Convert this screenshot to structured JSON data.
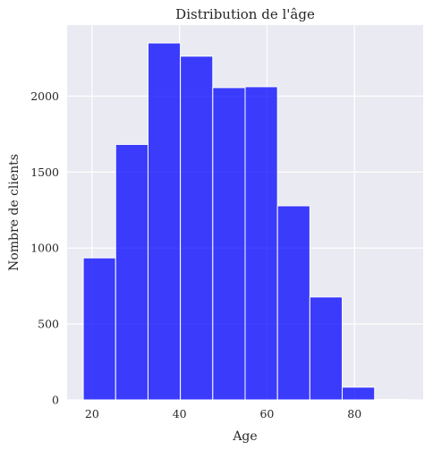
{
  "chart_data": {
    "type": "bar",
    "title": "Distribution de l'âge",
    "xlabel": "Age",
    "ylabel": "Nombre de clients",
    "bins": [
      {
        "start": 18.0,
        "end": 25.4,
        "value": 935
      },
      {
        "start": 25.4,
        "end": 32.8,
        "value": 1682
      },
      {
        "start": 32.8,
        "end": 40.2,
        "value": 2350
      },
      {
        "start": 40.2,
        "end": 47.6,
        "value": 2263
      },
      {
        "start": 47.6,
        "end": 55.0,
        "value": 2056
      },
      {
        "start": 55.0,
        "end": 62.4,
        "value": 2062
      },
      {
        "start": 62.4,
        "end": 69.8,
        "value": 1278
      },
      {
        "start": 69.8,
        "end": 77.2,
        "value": 678
      },
      {
        "start": 77.2,
        "end": 84.6,
        "value": 84
      },
      {
        "start": 84.6,
        "end": 92.0,
        "value": 3
      }
    ],
    "xticks": [
      20,
      40,
      60,
      80
    ],
    "yticks": [
      0,
      500,
      1000,
      1500,
      2000
    ],
    "xlim": [
      14.3,
      95.7
    ],
    "ylim": [
      0,
      2468
    ],
    "grid": true,
    "colors": {
      "bar": "#0000ff",
      "bar_opacity": 0.75,
      "bar_edge": "#ffffff",
      "plot_background": "#eaeaf2",
      "grid": "#ffffff",
      "text": "#262626"
    }
  }
}
